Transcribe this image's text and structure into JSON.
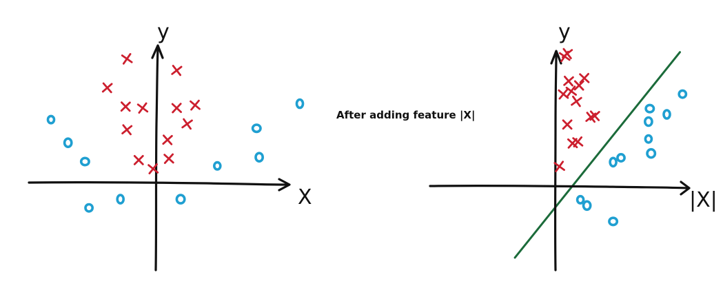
{
  "caption": "After adding feature |X|",
  "colors": {
    "cross": "#cc1f2e",
    "circle": "#1f9fd1",
    "boundary": "#1b6b3a",
    "axis": "#111111"
  },
  "left_panel": {
    "x_label": "X",
    "y_label": "y",
    "crosses": [
      [
        -0.22,
        0.86
      ],
      [
        0.16,
        0.78
      ],
      [
        -0.37,
        0.66
      ],
      [
        -0.23,
        0.53
      ],
      [
        0.16,
        0.52
      ],
      [
        0.3,
        0.54
      ],
      [
        -0.1,
        0.52
      ],
      [
        0.24,
        0.41
      ],
      [
        -0.22,
        0.37
      ],
      [
        0.09,
        0.3
      ],
      [
        -0.13,
        0.16
      ],
      [
        0.1,
        0.17
      ],
      [
        -0.02,
        0.1
      ]
    ],
    "circles": [
      [
        -0.8,
        0.44
      ],
      [
        -0.67,
        0.28
      ],
      [
        -0.54,
        0.15
      ],
      [
        -0.27,
        -0.11
      ],
      [
        -0.51,
        -0.17
      ],
      [
        0.19,
        -0.11
      ],
      [
        0.47,
        0.12
      ],
      [
        0.79,
        0.18
      ],
      [
        0.77,
        0.38
      ],
      [
        1.1,
        0.55
      ]
    ]
  },
  "right_panel": {
    "x_label": "|X|",
    "y_label": "y",
    "crosses": [
      [
        0.07,
        0.9
      ],
      [
        0.09,
        0.92
      ],
      [
        0.1,
        0.73
      ],
      [
        0.18,
        0.7
      ],
      [
        0.22,
        0.75
      ],
      [
        0.06,
        0.64
      ],
      [
        0.12,
        0.66
      ],
      [
        0.16,
        0.59
      ],
      [
        0.27,
        0.48
      ],
      [
        0.3,
        0.49
      ],
      [
        0.09,
        0.43
      ],
      [
        0.13,
        0.3
      ],
      [
        0.17,
        0.31
      ],
      [
        0.03,
        0.14
      ]
    ],
    "circles": [
      [
        0.19,
        -0.09
      ],
      [
        0.24,
        -0.13
      ],
      [
        0.44,
        -0.24
      ],
      [
        0.44,
        0.17
      ],
      [
        0.5,
        0.2
      ],
      [
        0.73,
        0.23
      ],
      [
        0.71,
        0.33
      ],
      [
        0.71,
        0.45
      ],
      [
        0.72,
        0.54
      ],
      [
        0.85,
        0.5
      ],
      [
        0.97,
        0.64
      ]
    ],
    "boundary": [
      [
        -0.31,
        -0.49
      ],
      [
        0.95,
        0.93
      ]
    ]
  }
}
